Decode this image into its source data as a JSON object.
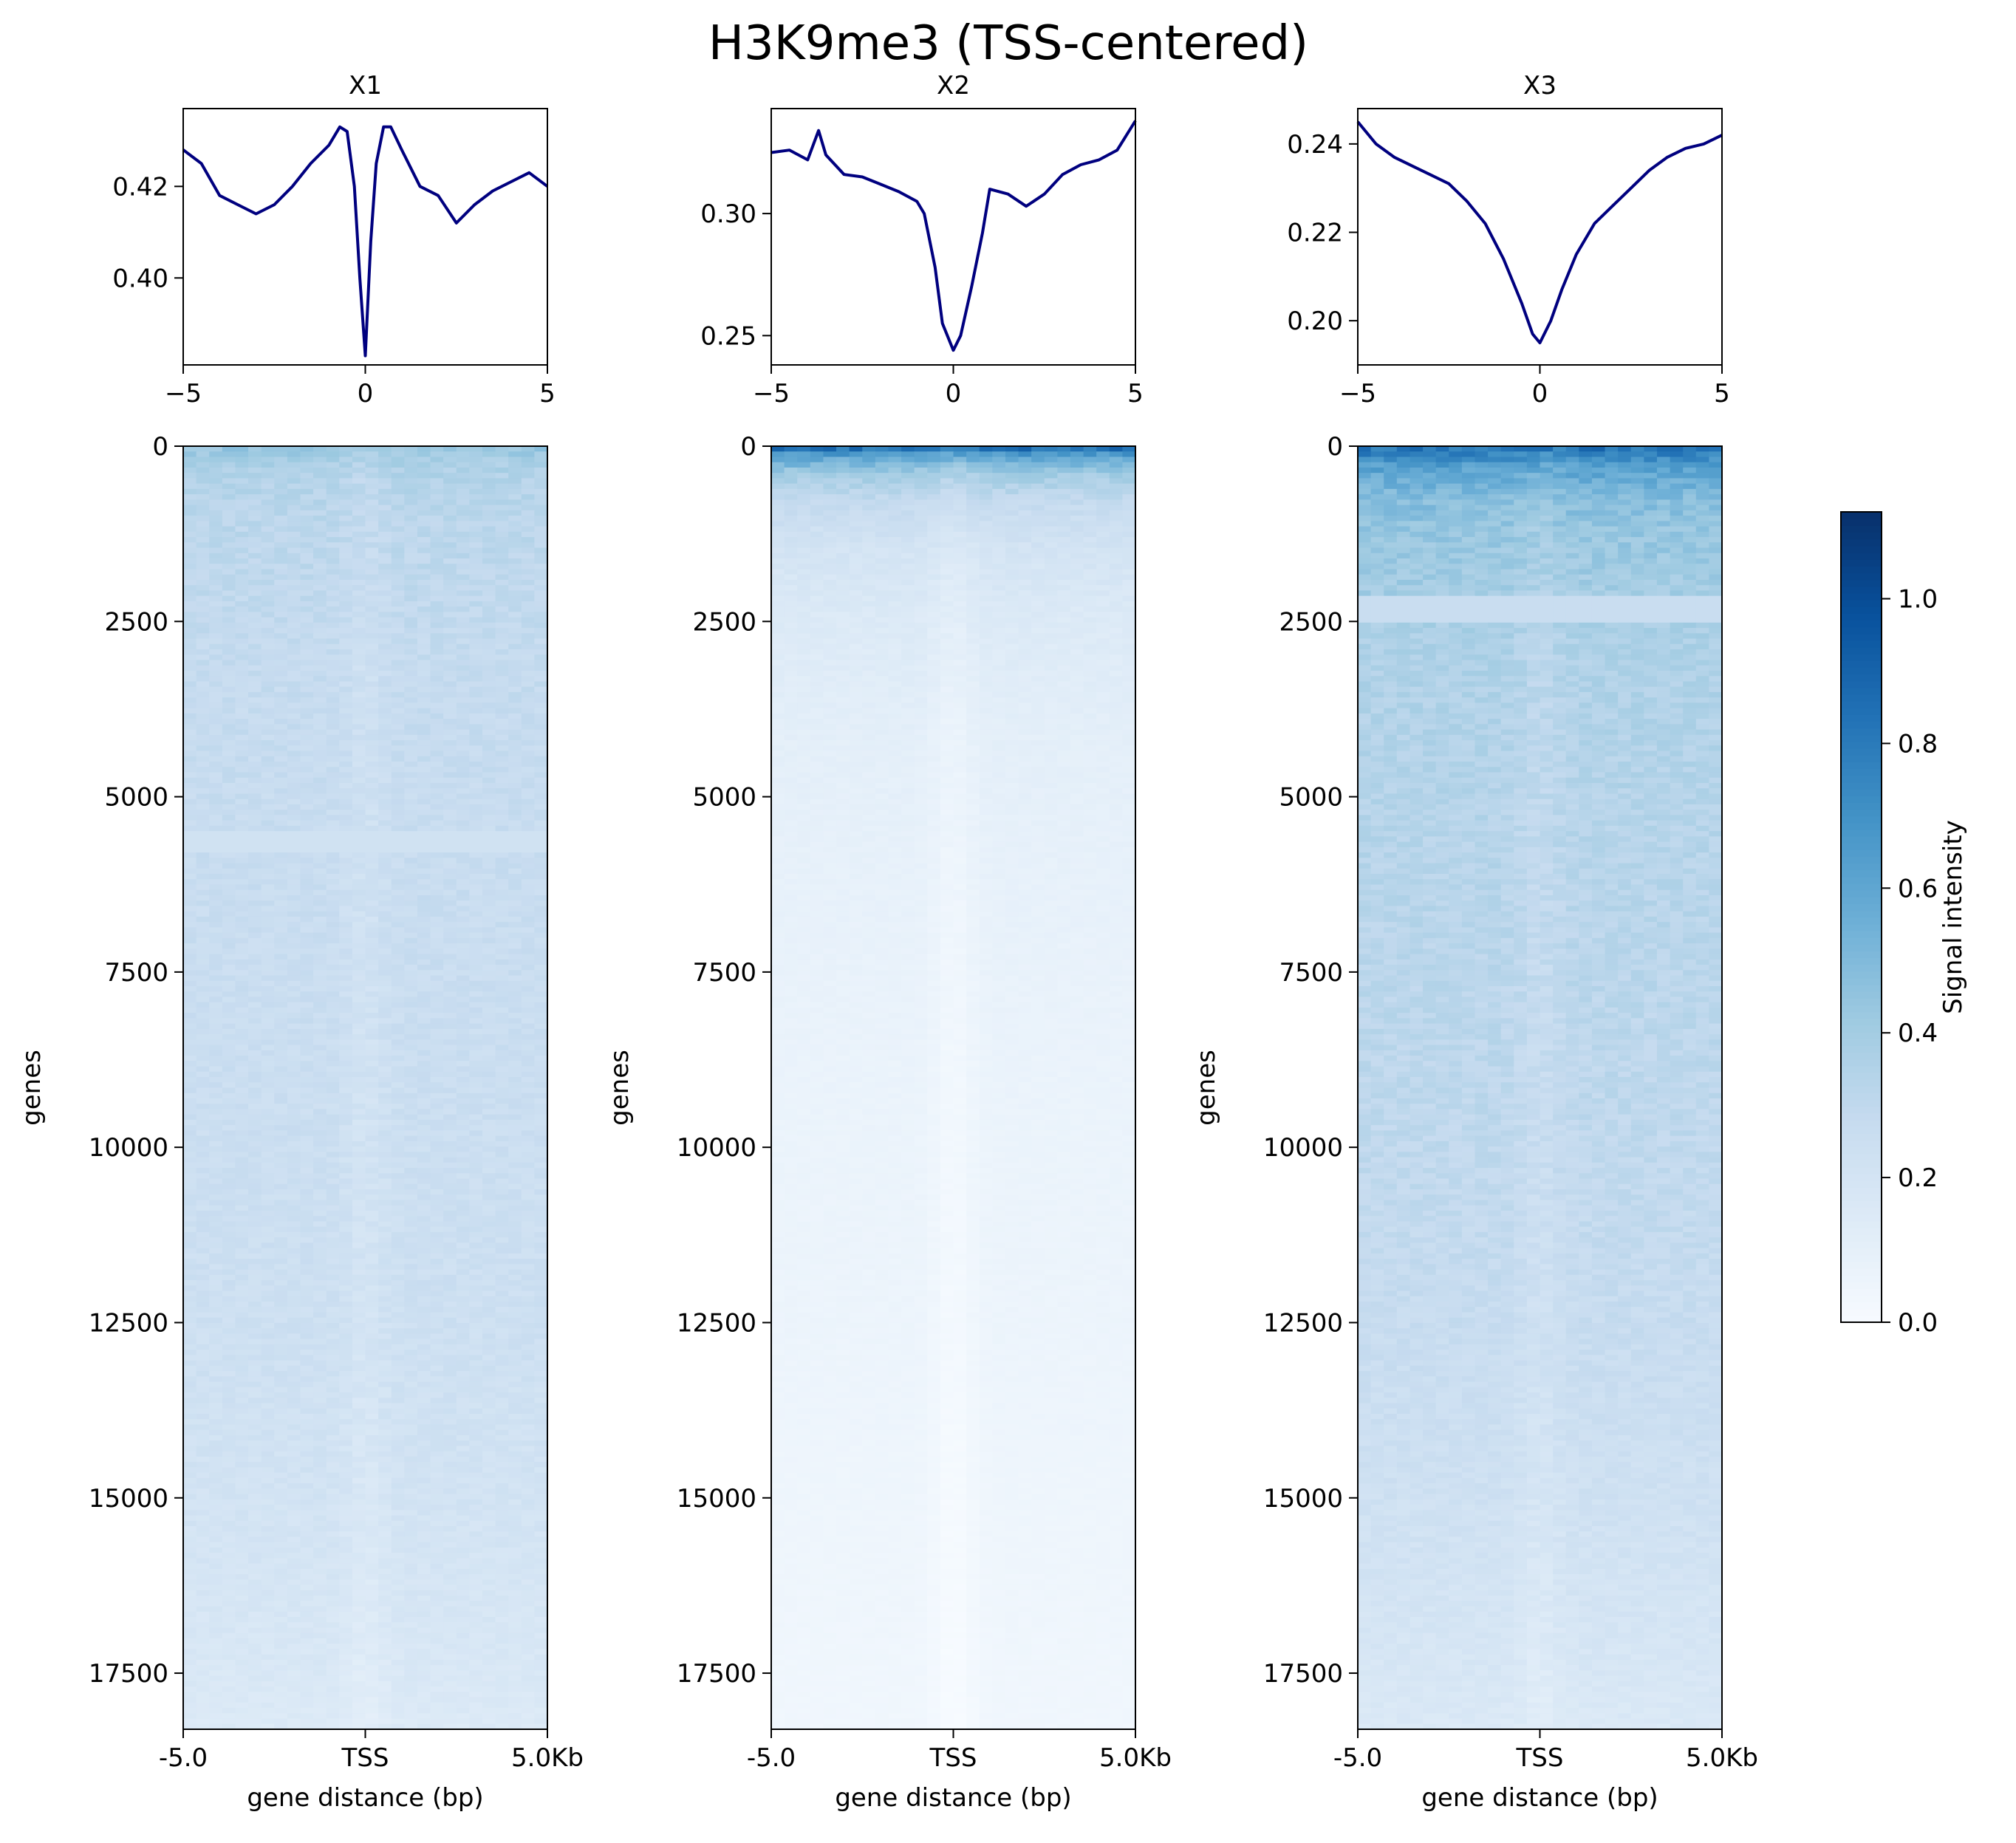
{
  "figure": {
    "title": "H3K9me3 (TSS-centered)"
  },
  "colorbar": {
    "label": "Signal intensity",
    "colormap": "Blues",
    "min": 0.0,
    "max": 1.12,
    "ticks": [
      "0.0",
      "0.2",
      "0.4",
      "0.6",
      "0.8",
      "1.0"
    ],
    "tick_values": [
      0,
      0.2,
      0.4,
      0.6,
      0.8,
      1.0
    ]
  },
  "colors": {
    "profile_line": "#00007f",
    "cmap_stops": [
      "#f7fbff",
      "#deebf7",
      "#c6dbef",
      "#9ecae1",
      "#6baed6",
      "#4292c6",
      "#2171b5",
      "#08519c",
      "#08306b"
    ]
  },
  "chart_data": [
    {
      "type": "line",
      "title": "X1",
      "xlim": [
        -5,
        5
      ],
      "x_ticks": [
        "−5",
        "0",
        "5"
      ],
      "x_tick_values": [
        -5,
        0,
        5
      ],
      "ylim": [
        0.381,
        0.437
      ],
      "y_ticks": [
        "0.40",
        "0.42"
      ],
      "y_tick_values": [
        0.4,
        0.42
      ],
      "x": [
        -5,
        -4.5,
        -4,
        -3.5,
        -3,
        -2.5,
        -2,
        -1.5,
        -1,
        -0.7,
        -0.5,
        -0.3,
        -0.15,
        0,
        0.15,
        0.3,
        0.5,
        0.7,
        1,
        1.5,
        2,
        2.5,
        3,
        3.5,
        4,
        4.5,
        5
      ],
      "y": [
        0.428,
        0.425,
        0.418,
        0.416,
        0.414,
        0.416,
        0.42,
        0.425,
        0.429,
        0.433,
        0.432,
        0.42,
        0.4,
        0.383,
        0.408,
        0.425,
        0.433,
        0.433,
        0.428,
        0.42,
        0.418,
        0.412,
        0.416,
        0.419,
        0.421,
        0.423,
        0.42
      ]
    },
    {
      "type": "line",
      "title": "X2",
      "xlim": [
        -5,
        5
      ],
      "x_ticks": [
        "−5",
        "0",
        "5"
      ],
      "x_tick_values": [
        -5,
        0,
        5
      ],
      "ylim": [
        0.238,
        0.343
      ],
      "y_ticks": [
        "0.25",
        "0.30"
      ],
      "y_tick_values": [
        0.25,
        0.3
      ],
      "x": [
        -5,
        -4.5,
        -4,
        -3.7,
        -3.5,
        -3,
        -2.5,
        -2,
        -1.5,
        -1,
        -0.8,
        -0.5,
        -0.3,
        0,
        0.2,
        0.5,
        0.8,
        1,
        1.5,
        2,
        2.5,
        3,
        3.5,
        4,
        4.5,
        5
      ],
      "y": [
        0.325,
        0.326,
        0.322,
        0.334,
        0.324,
        0.316,
        0.315,
        0.312,
        0.309,
        0.305,
        0.3,
        0.278,
        0.255,
        0.244,
        0.25,
        0.27,
        0.292,
        0.31,
        0.308,
        0.303,
        0.308,
        0.316,
        0.32,
        0.322,
        0.326,
        0.338
      ]
    },
    {
      "type": "line",
      "title": "X3",
      "xlim": [
        -5,
        5
      ],
      "x_ticks": [
        "−5",
        "0",
        "5"
      ],
      "x_tick_values": [
        -5,
        0,
        5
      ],
      "ylim": [
        0.19,
        0.248
      ],
      "y_ticks": [
        "0.20",
        "0.22",
        "0.24"
      ],
      "y_tick_values": [
        0.2,
        0.22,
        0.24
      ],
      "x": [
        -5,
        -4.5,
        -4,
        -3.5,
        -3,
        -2.5,
        -2,
        -1.5,
        -1,
        -0.5,
        -0.2,
        0,
        0.3,
        0.6,
        1,
        1.5,
        2,
        2.5,
        3,
        3.5,
        4,
        4.5,
        5
      ],
      "y": [
        0.245,
        0.24,
        0.237,
        0.235,
        0.233,
        0.231,
        0.227,
        0.222,
        0.214,
        0.204,
        0.197,
        0.195,
        0.2,
        0.207,
        0.215,
        0.222,
        0.226,
        0.23,
        0.234,
        0.237,
        0.239,
        0.24,
        0.242
      ]
    },
    {
      "type": "heatmap",
      "xlabel": "gene distance (bp)",
      "ylabel": "genes",
      "x_ticks": [
        "-5.0",
        "TSS",
        "5.0Kb"
      ],
      "ylim": [
        18300,
        0
      ],
      "y_ticks": [
        "0",
        "2500",
        "5000",
        "7500",
        "10000",
        "12500",
        "15000",
        "17500"
      ],
      "y_tick_values": [
        0,
        2500,
        5000,
        7500,
        10000,
        12500,
        15000,
        17500
      ],
      "row_intensity": {
        "genes": [
          0,
          200,
          500,
          1000,
          2000,
          3000,
          5000,
          7500,
          10000,
          12500,
          15000,
          17500,
          18300
        ],
        "value": [
          0.45,
          0.38,
          0.34,
          0.32,
          0.3,
          0.28,
          0.27,
          0.26,
          0.25,
          0.24,
          0.21,
          0.17,
          0.15
        ]
      },
      "uniform_band": {
        "genes_from": 5500,
        "genes_to": 5800,
        "value": 0.22
      }
    },
    {
      "type": "heatmap",
      "xlabel": "gene distance (bp)",
      "ylabel": "genes",
      "x_ticks": [
        "-5.0",
        "TSS",
        "5.0Kb"
      ],
      "ylim": [
        18300,
        0
      ],
      "y_ticks": [
        "0",
        "2500",
        "5000",
        "7500",
        "10000",
        "12500",
        "15000",
        "17500"
      ],
      "y_tick_values": [
        0,
        2500,
        5000,
        7500,
        10000,
        12500,
        15000,
        17500
      ],
      "row_intensity": {
        "genes": [
          0,
          150,
          400,
          800,
          1500,
          2500,
          4000,
          6000,
          9000,
          12500,
          15000,
          18300
        ],
        "value": [
          0.9,
          0.6,
          0.4,
          0.28,
          0.2,
          0.15,
          0.11,
          0.09,
          0.07,
          0.06,
          0.05,
          0.04
        ]
      }
    },
    {
      "type": "heatmap",
      "xlabel": "gene distance (bp)",
      "ylabel": "genes",
      "x_ticks": [
        "-5.0",
        "TSS",
        "5.0Kb"
      ],
      "ylim": [
        18300,
        0
      ],
      "y_ticks": [
        "0",
        "2500",
        "5000",
        "7500",
        "10000",
        "12500",
        "15000",
        "17500"
      ],
      "y_tick_values": [
        0,
        2500,
        5000,
        7500,
        10000,
        12500,
        15000,
        17500
      ],
      "row_intensity": {
        "genes": [
          0,
          300,
          700,
          1200,
          2000,
          3000,
          5000,
          7500,
          10000,
          12500,
          15000,
          17500,
          18300
        ],
        "value": [
          0.85,
          0.62,
          0.5,
          0.44,
          0.4,
          0.36,
          0.34,
          0.32,
          0.3,
          0.27,
          0.23,
          0.18,
          0.16
        ]
      },
      "uniform_band": {
        "genes_from": 2150,
        "genes_to": 2550,
        "value": 0.26
      }
    }
  ]
}
